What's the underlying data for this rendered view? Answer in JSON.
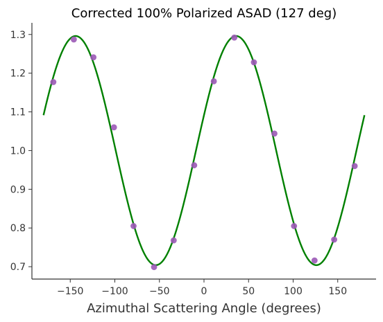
{
  "chart_data": {
    "type": "scatter",
    "title": "Corrected 100% Polarized ASAD (127 deg)",
    "xlabel": "Azimuthal Scattering Angle (degrees)",
    "ylabel": "",
    "xlim": [
      -193,
      193
    ],
    "ylim": [
      0.668,
      1.33
    ],
    "x_ticks": [
      -150,
      -100,
      -50,
      0,
      50,
      100,
      150
    ],
    "x_tick_labels": [
      "−150",
      "−100",
      "−50",
      "0",
      "50",
      "100",
      "150"
    ],
    "y_ticks": [
      0.7,
      0.8,
      0.9,
      1.0,
      1.1,
      1.2,
      1.3
    ],
    "y_tick_labels": [
      "0.7",
      "0.8",
      "0.9",
      "1.0",
      "1.1",
      "1.2",
      "1.3"
    ],
    "grid": false,
    "series": [
      {
        "kind": "points",
        "color": "#9b59b6",
        "x": [
          -169,
          -146,
          -124,
          -101,
          -79,
          -56,
          -34,
          -11,
          11,
          34,
          56,
          79,
          101,
          124,
          146,
          169
        ],
        "y": [
          1.177,
          1.287,
          1.241,
          1.06,
          0.805,
          0.699,
          0.768,
          0.962,
          1.179,
          1.292,
          1.228,
          1.044,
          0.805,
          0.716,
          0.77,
          0.96
        ]
      },
      {
        "kind": "fit-curve",
        "color": "#008000",
        "model": "y = A + B*cos(2*(x - phi))",
        "A": 1.0,
        "B": 0.296,
        "phi_deg": 36,
        "x_range": [
          -180,
          180
        ]
      }
    ]
  }
}
